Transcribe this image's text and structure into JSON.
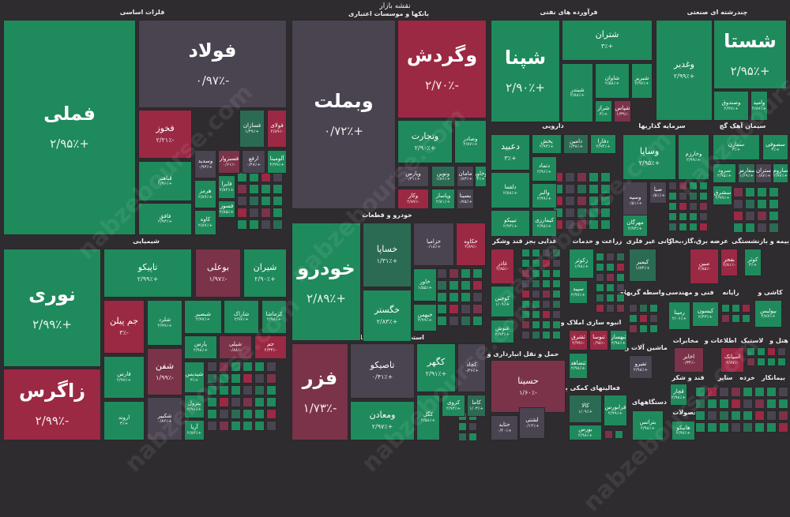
{
  "title": "نقشه بازار",
  "watermark": "nabzebourse.com",
  "colors": {
    "positive": "#1f8a5c",
    "slight_positive": "#2c6b53",
    "neutral": "#4a4350",
    "negative": "#9b2944",
    "slight_negative": "#7b3349",
    "background": "#2f2c30"
  },
  "sectors": [
    "فلزات اساسی",
    "بانکها و موسسات اعتباری",
    "فرآورده های نفتی",
    "چندرشته ای صنعتی",
    "شیمیایی",
    "خودرو و قطعات",
    "استخراج کانه های فلزی",
    "دارویی",
    "سرمایه گذاریها",
    "سیمان آهک گچ",
    "غذایی بجز قند وشکر",
    "زراعت و خدمات",
    "کانی غیر فلزی",
    "عرضه برق،گاز،بخار",
    "بیمه و بازنشستگی",
    "انبوه سازی املاک و",
    "حمل و نقل انبارداری و",
    "فعالیتهای کمکی به",
    "واسطه گریهای",
    "فنی و مهندسی",
    "رایانه",
    "کاشی و",
    "ماشین آلات و",
    "مخابرات",
    "اطلاعات و",
    "لاستیک",
    "هتل و",
    "قند و شکر",
    "سایر",
    "خرده",
    "بیمانکار",
    "دستگاههای",
    "محصولات"
  ],
  "tiles": [
    {
      "name": "فملی",
      "change": "+۲/۹۵٪"
    },
    {
      "name": "فولاد",
      "change": "-۰/۹۷٪"
    },
    {
      "name": "فخوز",
      "change": "-۲/۲۱٪"
    },
    {
      "name": "فسازان",
      "change": "+۱/۳۹٪"
    },
    {
      "name": "فولای",
      "change": "-۲/۸۹٪"
    },
    {
      "name": "قباهتر",
      "change": "+۲/۹۶٪"
    },
    {
      "name": "فافق",
      "change": "+۲/۹۳٪"
    },
    {
      "name": "وسدید",
      "change": "+۰/۹۳٪"
    },
    {
      "name": "فسبزوار",
      "change": "-۰/۶۱٪"
    },
    {
      "name": "ارفع",
      "change": "+۰/۴۸٪"
    },
    {
      "name": "آلومینا",
      "change": "+۲/۹۹٪"
    },
    {
      "name": "هرمز",
      "change": "+۲/۸۹٪"
    },
    {
      "name": "کاوه",
      "change": "+۲/۸۷٪"
    },
    {
      "name": "فایرا",
      "change": "+۲/۸۴٪"
    },
    {
      "name": "فسوز",
      "change": "+۲/۸۵٪"
    },
    {
      "name": "وبملت",
      "change": "+۰/۷۲٪"
    },
    {
      "name": "وگردش",
      "change": "-۲/۷۰٪"
    },
    {
      "name": "وتجارت",
      "change": "+۲/۹۰٪"
    },
    {
      "name": "وصادر",
      "change": "+۲/۸۷٪"
    },
    {
      "name": "وپارس",
      "change": "+۰/۳۱٪"
    },
    {
      "name": "ونوین",
      "change": "+۱/۸۶٪"
    },
    {
      "name": "مامان",
      "change": "+۰/۸۳٪"
    },
    {
      "name": "وخاور",
      "change": "+۳٪"
    },
    {
      "name": "وکار",
      "change": "-۲/۸۷٪"
    },
    {
      "name": "وپاسار",
      "change": "+۲/۸۱٪"
    },
    {
      "name": "بسینا",
      "change": "+۰/۷۵٪"
    },
    {
      "name": "شپنا",
      "change": "+۲/۹۰٪"
    },
    {
      "name": "شتران",
      "change": "+۳٪"
    },
    {
      "name": "شبندر",
      "change": "+۲/۸۸٪"
    },
    {
      "name": "شاوان",
      "change": "+۲/۵۸٪"
    },
    {
      "name": "شبریز",
      "change": "+۲/۹۷٪"
    },
    {
      "name": "شراز",
      "change": "+۳٪"
    },
    {
      "name": "شپاس",
      "change": "-۱/۳۹٪"
    },
    {
      "name": "وغدیر",
      "change": "+۲/۹۹٪"
    },
    {
      "name": "شستا",
      "change": "+۲/۹۵٪"
    },
    {
      "name": "وصندوق",
      "change": "+۲/۹۹٪"
    },
    {
      "name": "وامید",
      "change": "+۲/۸۷٪"
    },
    {
      "name": "دعبید",
      "change": "+۳٪"
    },
    {
      "name": "دلقما",
      "change": "+۲/۸۸٪"
    },
    {
      "name": "تیپیکو",
      "change": "+۲/۹۳٪"
    },
    {
      "name": "پخش",
      "change": "+۲/۹۳٪"
    },
    {
      "name": "دامین",
      "change": "+۱/۳۸٪"
    },
    {
      "name": "دفارا",
      "change": "+۲/۹۳٪"
    },
    {
      "name": "دتماد",
      "change": "+۲/۹۶٪"
    },
    {
      "name": "والبر",
      "change": "+۲/۹۹٪"
    },
    {
      "name": "کیمارزی",
      "change": "+۲/۹۸٪"
    },
    {
      "name": "وساپا",
      "change": "+۲/۹۵٪"
    },
    {
      "name": "وخارزم",
      "change": "+۲/۹۹٪"
    },
    {
      "name": "وسپه",
      "change": "+۰/۵۱٪"
    },
    {
      "name": "صبا",
      "change": "+۰/۵۱٪"
    },
    {
      "name": "مهرگان",
      "change": "+۲/۹۳٪"
    },
    {
      "name": "سمازن",
      "change": "+۳٪"
    },
    {
      "name": "سصوفی",
      "change": "+۳٪"
    },
    {
      "name": "سرود",
      "change": "+۲/۹۵٪"
    },
    {
      "name": "سفارس",
      "change": "+۱/۶۹٪"
    },
    {
      "name": "ستران",
      "change": "+۰/۸۷٪"
    },
    {
      "name": "ساروم",
      "change": "+۲/۹۷٪"
    },
    {
      "name": "سشرق",
      "change": "+۲/۹۹٪"
    },
    {
      "name": "نوری",
      "change": "+۲/۹۹٪"
    },
    {
      "name": "زاگرس",
      "change": "-۲/۹۹٪"
    },
    {
      "name": "تاپیکو",
      "change": "+۲/۹۹٪"
    },
    {
      "name": "بوعلی",
      "change": "-۱/۹۷٪"
    },
    {
      "name": "شیران",
      "change": "+۲/۹۰٪"
    },
    {
      "name": "جم پیلن",
      "change": "-۳٪"
    },
    {
      "name": "شلرد",
      "change": "+۲/۹۹٪"
    },
    {
      "name": "شبصیر",
      "change": "+۲/۹۷٪"
    },
    {
      "name": "شاراک",
      "change": "+۲/۹۷٪"
    },
    {
      "name": "کرماشا",
      "change": "+۲/۹۸٪"
    },
    {
      "name": "فارس",
      "change": "+۲/۹۷٪"
    },
    {
      "name": "شفن",
      "change": "-۱/۹۹٪"
    },
    {
      "name": "اروند",
      "change": "+۳٪"
    },
    {
      "name": "شکبیر",
      "change": "+۰/۸۲٪"
    },
    {
      "name": "پارس",
      "change": "+۲/۹۸٪"
    },
    {
      "name": "شپلی",
      "change": "-۰/۸۸٪"
    },
    {
      "name": "جم",
      "change": "-۲/۳۳٪"
    },
    {
      "name": "شپدیس",
      "change": "+۳٪"
    },
    {
      "name": "پترول",
      "change": "+۲/۹۶٪"
    },
    {
      "name": "آریا",
      "change": "+۲/۸۳٪"
    },
    {
      "name": "خودرو",
      "change": "+۲/۸۹٪"
    },
    {
      "name": "خساپا",
      "change": "+۱/۳۱٪"
    },
    {
      "name": "خگستر",
      "change": "+۲/۸۳٪"
    },
    {
      "name": "خزامیا",
      "change": "+۰/۱۸٪"
    },
    {
      "name": "خکاوه",
      "change": "-۲/۸۹٪"
    },
    {
      "name": "خاور",
      "change": "+۱/۵۵٪"
    },
    {
      "name": "خبهمن",
      "change": "+۲/۹۹٪"
    },
    {
      "name": "فزر",
      "change": "-۱/۷۳٪"
    },
    {
      "name": "تاصیکو",
      "change": "+۰/۴۱٪"
    },
    {
      "name": "ومعادن",
      "change": "+۲/۹۷٪"
    },
    {
      "name": "کگهر",
      "change": "+۲/۹۱٪"
    },
    {
      "name": "کچاد",
      "change": "+۰/۴۶٪"
    },
    {
      "name": "کگل",
      "change": "+۲/۵۸٪"
    },
    {
      "name": "کروی",
      "change": "+۲/۹۳٪"
    },
    {
      "name": "کاما",
      "change": "+۱/۰۳٪"
    },
    {
      "name": "غاذر",
      "change": "-۲/۸۵٪"
    },
    {
      "name": "کوچین",
      "change": "+۱/۰۹٪"
    },
    {
      "name": "غنوش",
      "change": "+۲/۹۳٪"
    },
    {
      "name": "حسینا",
      "change": "-۱/۶۰٪"
    },
    {
      "name": "حتاید",
      "change": "+۰/۴۰٪"
    },
    {
      "name": "لشتی",
      "change": "+۰/۱۴٪"
    },
    {
      "name": "کالا",
      "change": "+۱/۰۹٪"
    },
    {
      "name": "بورس",
      "change": "+۲/۹۸٪"
    },
    {
      "name": "فرابورس",
      "change": "+۲/۹۹٪"
    },
    {
      "name": "زکوثر",
      "change": "+۱/۹۸٪"
    },
    {
      "name": "سپید",
      "change": "+۲/۹۷٪"
    },
    {
      "name": "ثشرق",
      "change": "-۲/۹۹٪"
    },
    {
      "name": "تنوسا",
      "change": "-۰/۹۸٪"
    },
    {
      "name": "ثبهساز",
      "change": "+۲/۹۸٪"
    },
    {
      "name": "ثتضاهد",
      "change": "+۲/۹۸٪"
    },
    {
      "name": "کیمیر",
      "change": "+۱/۸۳٪"
    },
    {
      "name": "مبین",
      "change": "-۲/۸۵٪"
    },
    {
      "name": "بفجر",
      "change": "-۲/۸۱٪"
    },
    {
      "name": "کوثر",
      "change": "+۳٪"
    },
    {
      "name": "رمپنا",
      "change": "+۲/۰۶٪"
    },
    {
      "name": "کیسون",
      "change": "+۲/۴۳٪"
    },
    {
      "name": "بپولیس",
      "change": "+۲/۸۷٪"
    },
    {
      "name": "تفیرو",
      "change": "+۲/۹۸٪"
    },
    {
      "name": "اخابر",
      "change": "-۰/۳۴٪"
    },
    {
      "name": "اسیاتک",
      "change": "-۲/۸۷٪"
    },
    {
      "name": "قچار",
      "change": "+۲/۹۸٪"
    },
    {
      "name": "بترانس",
      "change": "+۲/۹۸٪"
    },
    {
      "name": "هانیکو",
      "change": "+۲/۹۷٪"
    }
  ]
}
